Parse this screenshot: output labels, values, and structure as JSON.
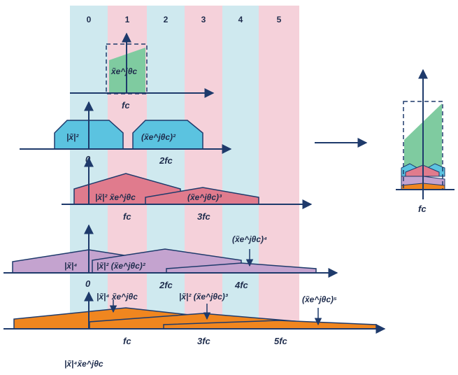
{
  "colors": {
    "zone_blue": "#cfe9ef",
    "zone_pink": "#f5d1da",
    "axis": "#1e3a6b",
    "green": "#7fcba0",
    "cyan": "#5bc3e0",
    "red": "#e07b8d",
    "purple": "#c4a3cf",
    "orange": "#f0861f"
  },
  "zones": [
    "0",
    "1",
    "2",
    "3",
    "4",
    "5"
  ],
  "labels": {
    "row1_term": "x̃e^jθc",
    "row1_fc": "fc",
    "row2_left": "|x̃|²",
    "row2_right": "(x̃e^jθc)²",
    "row2_zero": "0",
    "row2_2fc": "2fc",
    "row3_left": "|x̃|² x̃e^jθc",
    "row3_right": "(x̃e^jθc)³",
    "row3_fc": "fc",
    "row3_3fc": "3fc",
    "row4_left": "|x̃|⁴",
    "row4_mid": "|x̃|² (x̃e^jθc)²",
    "row4_right": "(x̃e^jθc)⁴",
    "row4_zero": "0",
    "row4_2fc": "2fc",
    "row4_4fc": "4fc",
    "row5_left": "|x̃|⁴ x̃e^jθc",
    "row5_mid": "|x̃|² (x̃e^jθc)³",
    "row5_right": "(x̃e^jθc)⁵",
    "row5_fc": "fc",
    "row5_3fc": "3fc",
    "row5_5fc": "5fc",
    "bottom_label": "|x̃|⁴x̃e^jθc",
    "result_fc": "fc"
  }
}
